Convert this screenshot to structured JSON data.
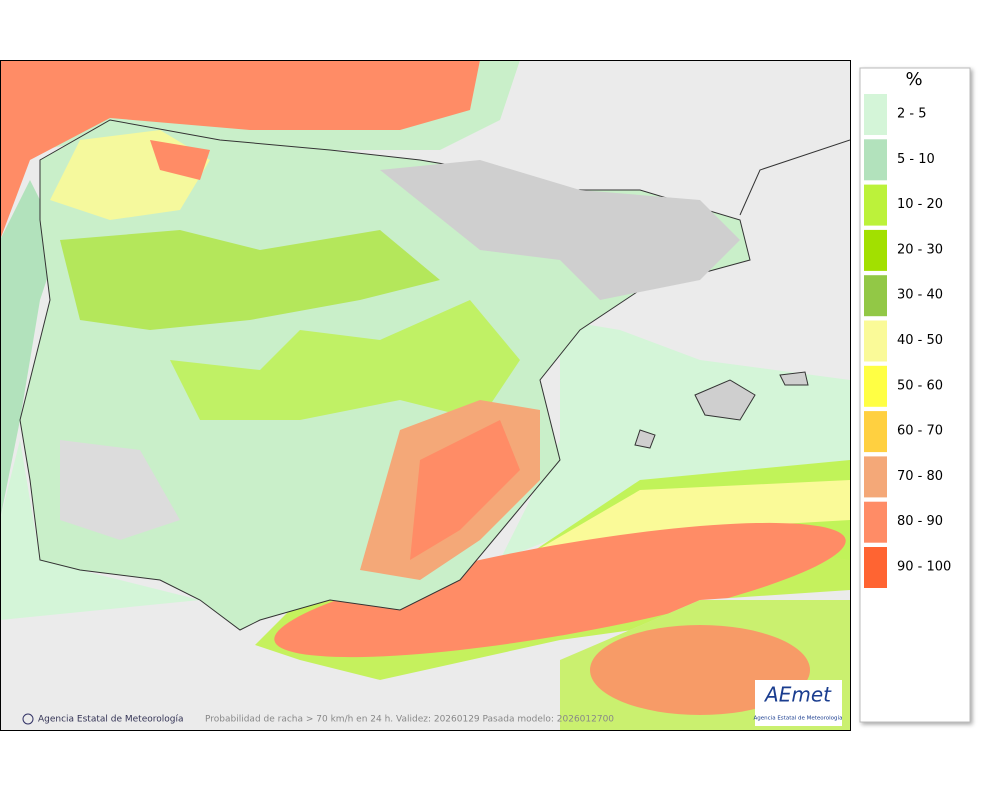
{
  "legend": {
    "title": "%",
    "items": [
      {
        "label": "2 - 5",
        "color": "#d4f5d8"
      },
      {
        "label": "5 - 10",
        "color": "#b2e2bc"
      },
      {
        "label": "10 - 20",
        "color": "#bcf23a"
      },
      {
        "label": "20 - 30",
        "color": "#a2e000"
      },
      {
        "label": "30 - 40",
        "color": "#92c846"
      },
      {
        "label": "40 - 50",
        "color": "#fafa98"
      },
      {
        "label": "50 - 60",
        "color": "#ffff44"
      },
      {
        "label": "60 - 70",
        "color": "#ffd040"
      },
      {
        "label": "70 - 80",
        "color": "#f4a878"
      },
      {
        "label": "80 - 90",
        "color": "#ff8c66"
      },
      {
        "label": "90 - 100",
        "color": "#ff6432"
      }
    ]
  },
  "footer": {
    "credit": "Agencia Estatal de Meteorología",
    "caption": "Probabilidad de racha > 70 km/h en 24 h. Validez: 20260129 Pasada modelo: 2026012700"
  },
  "logo": {
    "text": "AEmet",
    "subtitle": "Agencia Estatal de Meteorología"
  }
}
